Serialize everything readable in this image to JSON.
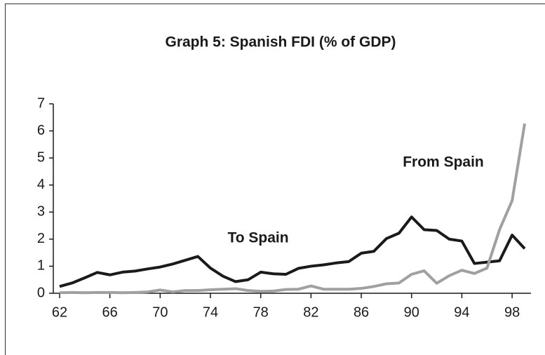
{
  "chart_data": {
    "type": "line",
    "title": "Graph 5: Spanish FDI (% of GDP)",
    "x": [
      62,
      63,
      64,
      65,
      66,
      67,
      68,
      69,
      70,
      71,
      72,
      73,
      74,
      75,
      76,
      77,
      78,
      79,
      80,
      81,
      82,
      83,
      84,
      85,
      86,
      87,
      88,
      89,
      90,
      91,
      92,
      93,
      94,
      95,
      96,
      97,
      98,
      99
    ],
    "series": [
      {
        "name": "To Spain",
        "color": "#1a1a1a",
        "values": [
          0.25,
          0.38,
          0.57,
          0.77,
          0.68,
          0.78,
          0.82,
          0.9,
          0.97,
          1.08,
          1.22,
          1.36,
          0.93,
          0.63,
          0.43,
          0.5,
          0.78,
          0.72,
          0.7,
          0.92,
          1.0,
          1.05,
          1.12,
          1.17,
          1.48,
          1.55,
          2.02,
          2.22,
          2.82,
          2.35,
          2.32,
          2.0,
          1.93,
          1.1,
          1.15,
          1.2,
          2.15,
          1.65
        ]
      },
      {
        "name": "From Spain",
        "color": "#a0a0a0",
        "values": [
          0.02,
          0.03,
          0.02,
          0.03,
          0.03,
          0.02,
          0.03,
          0.05,
          0.12,
          0.05,
          0.1,
          0.1,
          0.13,
          0.15,
          0.17,
          0.1,
          0.07,
          0.08,
          0.14,
          0.15,
          0.27,
          0.15,
          0.15,
          0.15,
          0.18,
          0.25,
          0.35,
          0.38,
          0.7,
          0.83,
          0.37,
          0.65,
          0.85,
          0.73,
          0.93,
          2.35,
          3.42,
          6.27
        ]
      }
    ],
    "xlim": [
      61.5,
      99.5
    ],
    "xticks": [
      62,
      66,
      70,
      74,
      78,
      82,
      86,
      90,
      94,
      98
    ],
    "ylim": [
      0,
      7
    ],
    "yticks": [
      0,
      1,
      2,
      3,
      4,
      5,
      6,
      7
    ]
  }
}
